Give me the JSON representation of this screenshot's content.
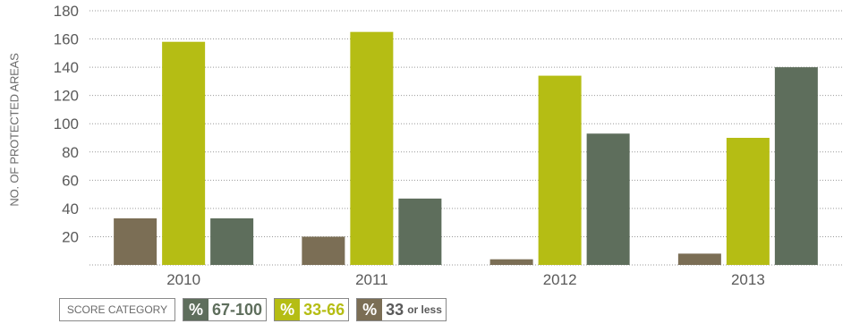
{
  "chart_data": {
    "type": "bar",
    "categories": [
      "2010",
      "2011",
      "2012",
      "2013"
    ],
    "series": [
      {
        "name": "33 or less",
        "color": "#7b6e55",
        "values": [
          33,
          20,
          4,
          8
        ]
      },
      {
        "name": "33-66",
        "color": "#b5bd14",
        "values": [
          158,
          165,
          134,
          90
        ]
      },
      {
        "name": "67-100",
        "color": "#5e6e5c",
        "values": [
          33,
          47,
          93,
          140
        ]
      }
    ],
    "ylabel": "NO. OF PROTECTED AREAS",
    "ylim": [
      0,
      180
    ],
    "yticks": [
      20,
      40,
      60,
      80,
      100,
      120,
      140,
      160,
      180
    ],
    "grid": true
  },
  "legend": {
    "title": "SCORE CATEGORY",
    "items": [
      {
        "symbol": "%",
        "range": "67-100",
        "suffix": "",
        "color": "#5e6e5c",
        "text_color": "#5e6e5c"
      },
      {
        "symbol": "%",
        "range": "33-66",
        "suffix": "",
        "color": "#b5bd14",
        "text_color": "#b5bd14"
      },
      {
        "symbol": "%",
        "range": "33",
        "suffix": "or less",
        "color": "#7b6e55",
        "text_color": "#5a5a5a"
      }
    ]
  }
}
